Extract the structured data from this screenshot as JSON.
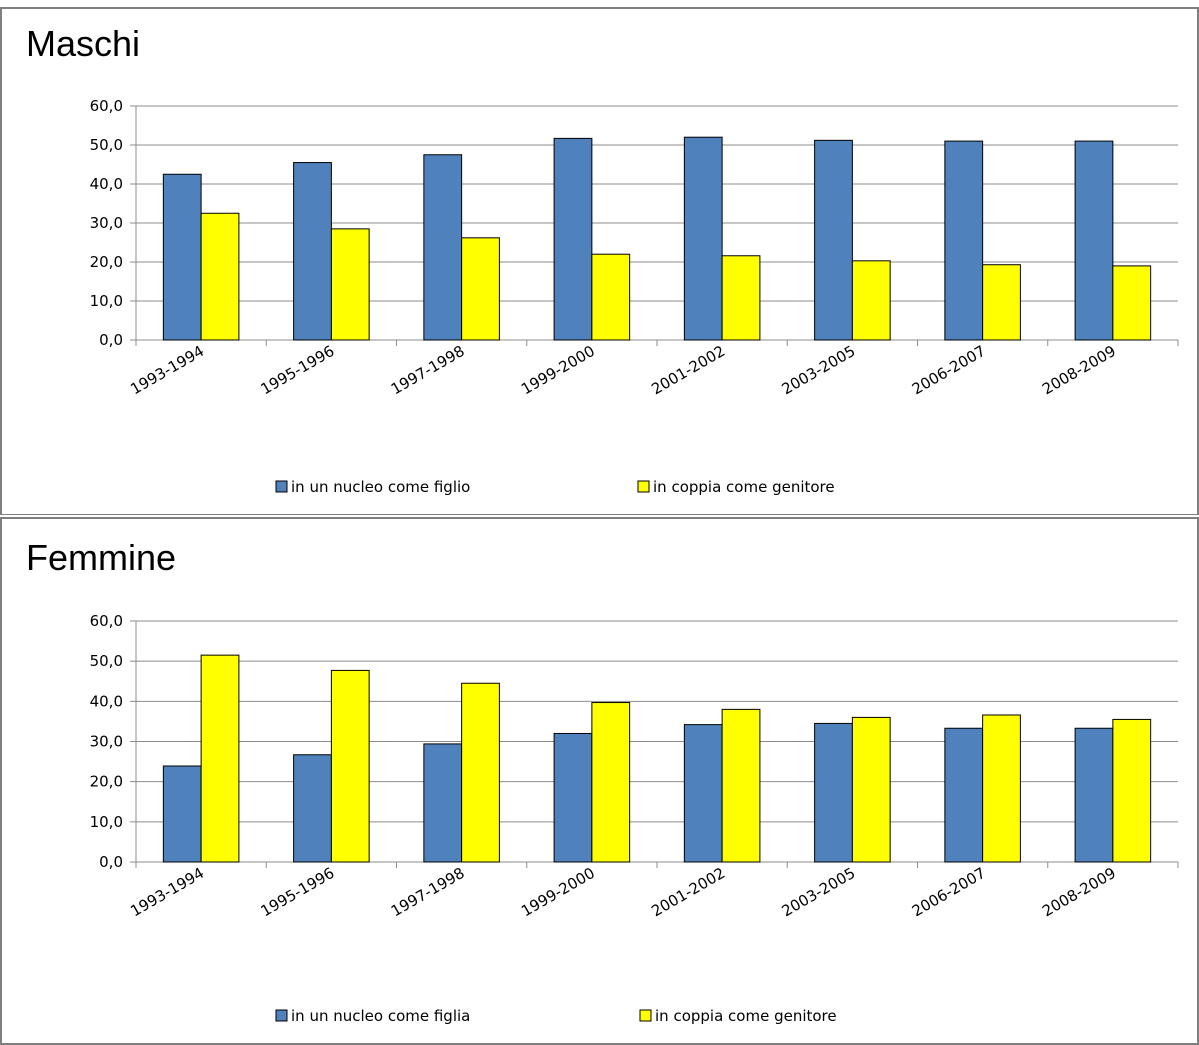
{
  "chart_data": [
    {
      "type": "bar",
      "title": "Maschi",
      "categories": [
        "1993-1994",
        "1995-1996",
        "1997-1998",
        "1999-2000",
        "2001-2002",
        "2003-2005",
        "2006-2007",
        "2008-2009"
      ],
      "series": [
        {
          "name": "in un nucleo come figlio",
          "color": "#4f81bd",
          "values": [
            42.5,
            45.5,
            47.5,
            51.7,
            52.0,
            51.2,
            51.0,
            51.0
          ]
        },
        {
          "name": "in coppia come genitore",
          "color": "#ffff00",
          "values": [
            32.5,
            28.5,
            26.2,
            22.0,
            21.6,
            20.3,
            19.3,
            19.0
          ]
        }
      ],
      "yticks": [
        "0,0",
        "10,0",
        "20,0",
        "30,0",
        "40,0",
        "50,0",
        "60,0"
      ],
      "ylim": [
        0,
        60
      ],
      "grid": true,
      "legend": "bottom"
    },
    {
      "type": "bar",
      "title": "Femmine",
      "categories": [
        "1993-1994",
        "1995-1996",
        "1997-1998",
        "1999-2000",
        "2001-2002",
        "2003-2005",
        "2006-2007",
        "2008-2009"
      ],
      "series": [
        {
          "name": "in un nucleo come figlia",
          "color": "#4f81bd",
          "values": [
            23.9,
            26.7,
            29.4,
            32.0,
            34.2,
            34.5,
            33.3,
            33.3
          ]
        },
        {
          "name": "in coppia come genitore",
          "color": "#ffff00",
          "values": [
            51.5,
            47.7,
            44.5,
            39.7,
            38.0,
            36.0,
            36.6,
            35.5
          ]
        }
      ],
      "yticks": [
        "0,0",
        "10,0",
        "20,0",
        "30,0",
        "40,0",
        "50,0",
        "60,0"
      ],
      "ylim": [
        0,
        60
      ],
      "grid": true,
      "legend": "bottom"
    }
  ]
}
